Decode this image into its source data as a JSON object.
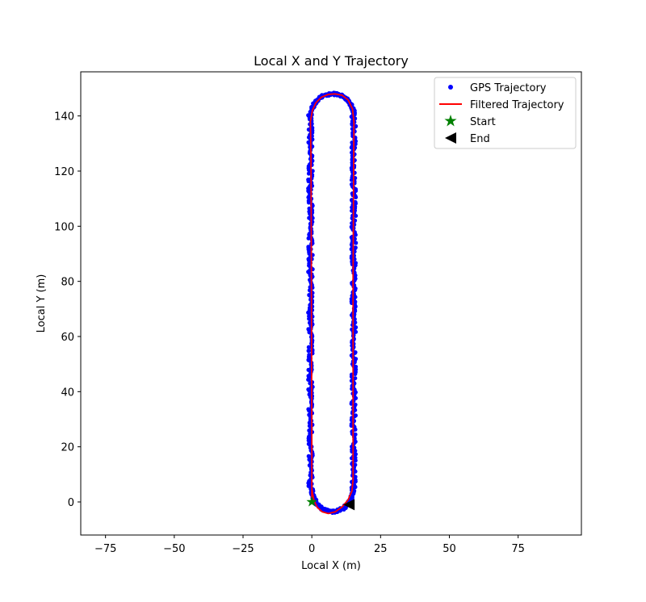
{
  "chart_data": {
    "type": "scatter",
    "title": "Local X and Y Trajectory",
    "xlabel": "Local X (m)",
    "ylabel": "Local Y (m)",
    "xlim": [
      -84,
      98
    ],
    "ylim": [
      -12,
      156
    ],
    "xticks": [
      -75,
      -50,
      -25,
      0,
      25,
      50,
      75
    ],
    "yticks": [
      0,
      20,
      40,
      60,
      80,
      100,
      120,
      140
    ],
    "grid": false,
    "legend_position": "upper right",
    "series": [
      {
        "name": "GPS Trajectory",
        "kind": "scatter",
        "color": "#0000ff",
        "marker": "circle",
        "description": "noisy GPS points around an elongated loop: straight legs x≈0 and x≈15 from y≈5 to y≈140, semicircular ends centered (7.5,140) and (7.5,5), radius ≈7.5"
      },
      {
        "name": "Filtered Trajectory",
        "kind": "line",
        "color": "#ff0000",
        "points": [
          [
            0.0,
            0.0
          ],
          [
            0.0,
            20.0
          ],
          [
            -0.1,
            60.0
          ],
          [
            -0.2,
            100.0
          ],
          [
            -0.3,
            125.0
          ],
          [
            -0.5,
            138.0
          ],
          [
            0.2,
            142.0
          ],
          [
            1.5,
            144.8
          ],
          [
            3.5,
            146.8
          ],
          [
            6.0,
            147.8
          ],
          [
            8.5,
            148.0
          ],
          [
            11.0,
            147.5
          ],
          [
            13.2,
            145.8
          ],
          [
            14.8,
            142.5
          ],
          [
            15.3,
            138.0
          ],
          [
            15.2,
            120.0
          ],
          [
            15.1,
            100.0
          ],
          [
            15.0,
            80.0
          ],
          [
            15.0,
            60.0
          ],
          [
            15.0,
            40.0
          ],
          [
            15.0,
            20.0
          ],
          [
            15.0,
            8.0
          ],
          [
            14.6,
            4.0
          ],
          [
            13.2,
            0.8
          ],
          [
            11.0,
            -1.8
          ],
          [
            8.5,
            -3.6
          ],
          [
            6.0,
            -4.2
          ],
          [
            3.8,
            -3.6
          ],
          [
            2.0,
            -2.0
          ],
          [
            0.8,
            0.5
          ],
          [
            0.3,
            3.0
          ],
          [
            0.0,
            5.0
          ]
        ]
      },
      {
        "name": "Start",
        "kind": "marker",
        "color": "#008000",
        "marker": "star",
        "points": [
          [
            0.0,
            0.0
          ]
        ]
      },
      {
        "name": "End",
        "kind": "marker",
        "color": "#000000",
        "marker": "triangle-left",
        "points": [
          [
            13.5,
            -1.0
          ]
        ]
      }
    ]
  }
}
